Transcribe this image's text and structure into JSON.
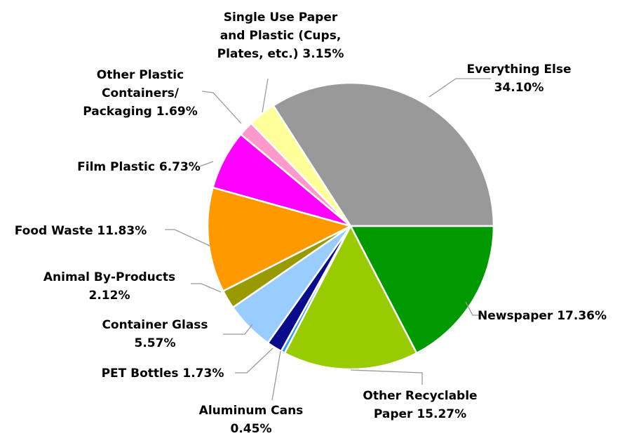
{
  "chart_data": {
    "type": "pie",
    "title": "",
    "start": "3 o'clock",
    "direction": "counter-clockwise",
    "slices": [
      {
        "name": "Everything Else",
        "value": 34.1,
        "label_lines": [
          "Everything Else",
          "34.10%"
        ],
        "color": "#999999"
      },
      {
        "name": "Single Use Paper and Plastic (Cups, Plates, etc.)",
        "value": 3.15,
        "label_lines": [
          "Single Use Paper",
          "and Plastic (Cups,",
          "Plates, etc.) 3.15%"
        ],
        "color": "#ffff99"
      },
      {
        "name": "Other Plastic Containers/ Packaging",
        "value": 1.69,
        "label_lines": [
          "Other Plastic",
          "Containers/",
          "Packaging 1.69%"
        ],
        "color": "#ff99cc"
      },
      {
        "name": "Film Plastic",
        "value": 6.73,
        "label_lines": [
          "Film Plastic 6.73%"
        ],
        "color": "#ff00ff"
      },
      {
        "name": "Food Waste",
        "value": 11.83,
        "label_lines": [
          "Food Waste 11.83%"
        ],
        "color": "#ff9900"
      },
      {
        "name": "Animal By-Products",
        "value": 2.12,
        "label_lines": [
          "Animal By-Products",
          "2.12%"
        ],
        "color": "#999900"
      },
      {
        "name": "Container Glass",
        "value": 5.57,
        "label_lines": [
          "Container Glass",
          "5.57%"
        ],
        "color": "#99ccff"
      },
      {
        "name": "PET Bottles",
        "value": 1.73,
        "label_lines": [
          "PET Bottles 1.73%"
        ],
        "color": "#0a0a8c"
      },
      {
        "name": "Aluminum Cans",
        "value": 0.45,
        "label_lines": [
          "Aluminum Cans",
          "0.45%"
        ],
        "color": "#3399ff"
      },
      {
        "name": "Other Recyclable Paper",
        "value": 15.27,
        "label_lines": [
          "Other Recyclable",
          "Paper 15.27%"
        ],
        "color": "#99cc00"
      },
      {
        "name": "Newspaper",
        "value": 17.36,
        "label_lines": [
          "Newspaper 17.36%"
        ],
        "color": "#009900"
      }
    ]
  }
}
